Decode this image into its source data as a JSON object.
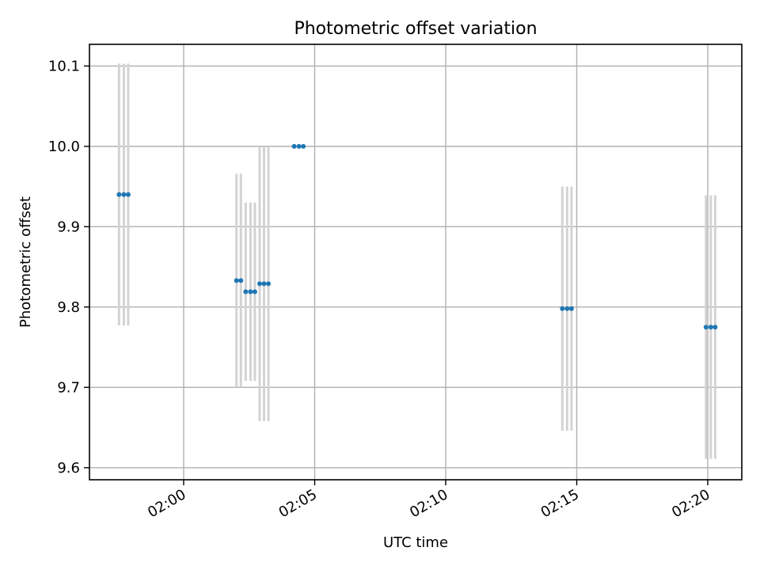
{
  "chart_data": {
    "type": "scatter",
    "title": "Photometric offset variation",
    "xlabel": "UTC time",
    "ylabel": "Photometric offset",
    "x_ticks": [
      "02:00",
      "02:05",
      "02:10",
      "02:15",
      "02:20"
    ],
    "x_tick_minutes": [
      120,
      125,
      130,
      135,
      140
    ],
    "y_ticks": [
      "9.6",
      "9.7",
      "9.8",
      "9.9",
      "10.0",
      "10.1"
    ],
    "y_tick_values": [
      9.6,
      9.7,
      9.8,
      9.9,
      10.0,
      10.1
    ],
    "ylim": [
      9.585,
      10.127
    ],
    "grid": true,
    "points": [
      {
        "time": "01:57:32",
        "y": 9.94,
        "err": 0.163
      },
      {
        "time": "01:57:43",
        "y": 9.94,
        "err": 0.163
      },
      {
        "time": "01:57:53",
        "y": 9.94,
        "err": 0.163
      },
      {
        "time": "02:02:01",
        "y": 9.833,
        "err": 0.133
      },
      {
        "time": "02:02:11",
        "y": 9.833,
        "err": 0.133
      },
      {
        "time": "02:02:22",
        "y": 9.819,
        "err": 0.111
      },
      {
        "time": "02:02:33",
        "y": 9.819,
        "err": 0.111
      },
      {
        "time": "02:02:43",
        "y": 9.819,
        "err": 0.111
      },
      {
        "time": "02:02:54",
        "y": 9.829,
        "err": 0.171
      },
      {
        "time": "02:03:04",
        "y": 9.829,
        "err": 0.171
      },
      {
        "time": "02:03:14",
        "y": 9.829,
        "err": 0.171
      },
      {
        "time": "02:04:13",
        "y": 10.0,
        "err": 0.0
      },
      {
        "time": "02:04:24",
        "y": 10.0,
        "err": 0.0
      },
      {
        "time": "02:04:34",
        "y": 10.0,
        "err": 0.0
      },
      {
        "time": "02:14:27",
        "y": 9.798,
        "err": 0.152
      },
      {
        "time": "02:14:38",
        "y": 9.798,
        "err": 0.152
      },
      {
        "time": "02:14:48",
        "y": 9.798,
        "err": 0.152
      },
      {
        "time": "02:19:56",
        "y": 9.775,
        "err": 0.164
      },
      {
        "time": "02:20:07",
        "y": 9.775,
        "err": 0.164
      },
      {
        "time": "02:20:17",
        "y": 9.775,
        "err": 0.164
      }
    ],
    "marker_color": "#1f77b4",
    "errorbar_color": "#d3d3d3"
  }
}
